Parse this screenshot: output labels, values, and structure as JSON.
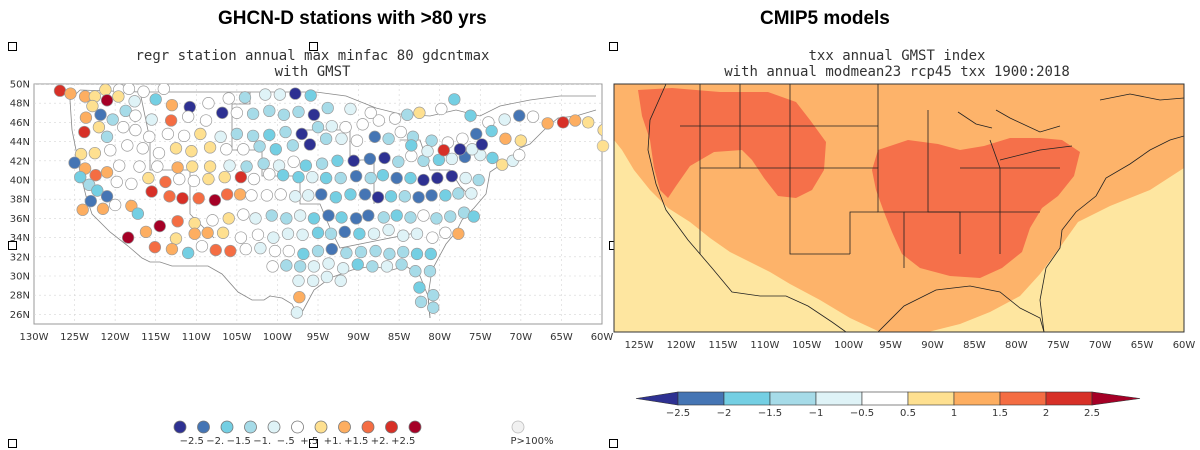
{
  "headings": {
    "left": "GHCN-D stations with >80 yrs",
    "right": "CMIP5 models"
  },
  "left_panel": {
    "subtitle_line1": "regr station annual max minfac 80 gdcntmax",
    "subtitle_line2": "with GMST",
    "lat_labels": [
      "50N",
      "48N",
      "46N",
      "44N",
      "42N",
      "40N",
      "38N",
      "36N",
      "34N",
      "32N",
      "30N",
      "28N",
      "26N"
    ],
    "lon_labels": [
      "130W",
      "125W",
      "120W",
      "115W",
      "110W",
      "105W",
      "100W",
      "95W",
      "90W",
      "85W",
      "80W",
      "75W",
      "70W",
      "65W",
      "60W"
    ],
    "legend_labels": [
      "−2.5",
      "−2.",
      "−1.5",
      "−1.",
      "−.5",
      "+.5",
      "+1.",
      "+1.5",
      "+2.",
      "+2.5"
    ],
    "legend_extra": "P>100%"
  },
  "right_panel": {
    "subtitle_line1": "txx annual GMST index",
    "subtitle_line2": "with annual modmean23 rcp45 txx 1900:2018",
    "lon_labels": [
      "125W",
      "120W",
      "115W",
      "110W",
      "105W",
      "100W",
      "95W",
      "90W",
      "85W",
      "80W",
      "75W",
      "70W",
      "65W",
      "60W"
    ],
    "colorbar_labels": [
      "−2.5",
      "−2",
      "−1.5",
      "−1",
      "−0.5",
      "0.5",
      "1",
      "1.5",
      "2",
      "2.5"
    ]
  },
  "colors": {
    "c-3": "#2e3192",
    "c-2": "#4575b4",
    "c-1": "#74cfe3",
    "c0": "#a6dbe8",
    "c1": "#dff3f7",
    "c2": "#ffffff",
    "c3": "#fee090",
    "c4": "#fdae61",
    "c5": "#f46d43",
    "c6": "#d73027",
    "c7": "#a50026",
    "ocean": "#fee6a0",
    "land_pos1": "#fdae61",
    "land_pos2": "#f46d43"
  },
  "chart_data": {
    "type": "scatter",
    "title": "regr station annual max minfac 80 gdcntmax with GMST",
    "xlim": [
      -130,
      -60
    ],
    "ylim": [
      25,
      50
    ],
    "classes": [
      -3,
      -2,
      -1,
      0,
      1,
      2,
      3,
      4,
      5,
      6,
      7
    ],
    "stations": [
      [
        -126.8,
        49.3,
        6
      ],
      [
        -125.5,
        49.0,
        4
      ],
      [
        -123.7,
        48.7,
        4
      ],
      [
        -122.5,
        48.7,
        3
      ],
      [
        -121.2,
        49.4,
        3
      ],
      [
        -119.5,
        49.4,
        2
      ],
      [
        -118.3,
        49.5,
        2
      ],
      [
        -116.5,
        49.2,
        2
      ],
      [
        -114.0,
        49.5,
        2
      ],
      [
        -121.0,
        48.3,
        7
      ],
      [
        -119.6,
        48.7,
        3
      ],
      [
        -117.6,
        48.2,
        1
      ],
      [
        -115.0,
        48.4,
        -1
      ],
      [
        -113.0,
        47.8,
        4
      ],
      [
        -110.8,
        47.6,
        -3
      ],
      [
        -108.5,
        48.0,
        2
      ],
      [
        -106.0,
        48.5,
        2
      ],
      [
        -104.0,
        48.6,
        0
      ],
      [
        -101.5,
        48.9,
        1
      ],
      [
        -99.7,
        48.9,
        1
      ],
      [
        -97.8,
        49.0,
        -3
      ],
      [
        -95.9,
        48.8,
        -1
      ],
      [
        -122.8,
        47.7,
        3
      ],
      [
        -121.8,
        46.8,
        -2
      ],
      [
        -120.3,
        46.3,
        0
      ],
      [
        -118.7,
        47.2,
        0
      ],
      [
        -117.5,
        46.7,
        2
      ],
      [
        -115.5,
        46.3,
        1
      ],
      [
        -113.1,
        46.2,
        5
      ],
      [
        -111.0,
        46.6,
        2
      ],
      [
        -108.8,
        46.2,
        2
      ],
      [
        -106.8,
        47.0,
        -3
      ],
      [
        -105.0,
        47.0,
        2
      ],
      [
        -103.0,
        46.9,
        0
      ],
      [
        -101.0,
        47.2,
        0
      ],
      [
        -99.2,
        46.8,
        0
      ],
      [
        -97.4,
        47.1,
        0
      ],
      [
        -95.5,
        46.8,
        -3
      ],
      [
        -123.6,
        46.5,
        4
      ],
      [
        -122.0,
        45.5,
        3
      ],
      [
        -123.8,
        45.0,
        6
      ],
      [
        -121.0,
        44.5,
        0
      ],
      [
        -119.0,
        45.5,
        2
      ],
      [
        -117.5,
        45.2,
        2
      ],
      [
        -115.8,
        44.5,
        2
      ],
      [
        -113.5,
        44.8,
        2
      ],
      [
        -111.5,
        44.6,
        2
      ],
      [
        -109.5,
        44.8,
        3
      ],
      [
        -107.0,
        44.5,
        1
      ],
      [
        -105.0,
        44.8,
        0
      ],
      [
        -103.0,
        44.6,
        0
      ],
      [
        -101.0,
        44.7,
        -1
      ],
      [
        -99.0,
        45.0,
        0
      ],
      [
        -97.0,
        44.8,
        -3
      ],
      [
        -95.0,
        45.5,
        0
      ],
      [
        -93.3,
        45.6,
        1
      ],
      [
        -91.6,
        45.5,
        2
      ],
      [
        -89.5,
        45.8,
        2
      ],
      [
        -87.5,
        46.2,
        2
      ],
      [
        -85.5,
        46.4,
        2
      ],
      [
        -84.0,
        46.8,
        0
      ],
      [
        -82.5,
        47.0,
        3
      ],
      [
        -93.8,
        47.5,
        0
      ],
      [
        -91.0,
        47.4,
        1
      ],
      [
        -88.5,
        47.0,
        2
      ],
      [
        -79.8,
        47.4,
        2
      ],
      [
        -78.2,
        48.4,
        -1
      ],
      [
        -76.2,
        46.7,
        -1
      ],
      [
        -74.0,
        46.0,
        2
      ],
      [
        -72.0,
        46.3,
        1
      ],
      [
        -70.2,
        46.7,
        -2
      ],
      [
        -68.5,
        46.6,
        2
      ],
      [
        -66.7,
        45.9,
        4
      ],
      [
        -64.8,
        46.0,
        6
      ],
      [
        -63.3,
        46.2,
        4
      ],
      [
        -61.7,
        46.0,
        3
      ],
      [
        -59.8,
        45.2,
        3
      ],
      [
        -70.0,
        44.1,
        3
      ],
      [
        -71.9,
        44.3,
        4
      ],
      [
        -73.6,
        45.1,
        -1
      ],
      [
        -75.5,
        44.8,
        -2
      ],
      [
        -77.2,
        44.3,
        2
      ],
      [
        -79.0,
        43.9,
        2
      ],
      [
        -81.0,
        44.1,
        0
      ],
      [
        -83.3,
        44.5,
        0
      ],
      [
        -84.8,
        45.0,
        2
      ],
      [
        -86.3,
        44.3,
        0
      ],
      [
        -88.0,
        44.5,
        -2
      ],
      [
        -90.2,
        44.1,
        2
      ],
      [
        -92.1,
        44.3,
        1
      ],
      [
        -94.0,
        44.3,
        0
      ],
      [
        -96.0,
        43.7,
        -3
      ],
      [
        -98.1,
        43.6,
        0
      ],
      [
        -100.2,
        43.2,
        -1
      ],
      [
        -102.2,
        43.5,
        0
      ],
      [
        -104.2,
        43.2,
        2
      ],
      [
        -106.3,
        43.2,
        2
      ],
      [
        -108.3,
        43.4,
        3
      ],
      [
        -110.6,
        43.0,
        3
      ],
      [
        -112.5,
        43.3,
        3
      ],
      [
        -114.6,
        42.8,
        2
      ],
      [
        -116.6,
        43.3,
        2
      ],
      [
        -118.5,
        43.6,
        2
      ],
      [
        -120.6,
        43.1,
        2
      ],
      [
        -122.5,
        42.8,
        3
      ],
      [
        -124.2,
        42.7,
        3
      ],
      [
        -125.0,
        41.8,
        -2
      ],
      [
        -123.7,
        41.2,
        4
      ],
      [
        -122.4,
        40.5,
        5
      ],
      [
        -121.0,
        40.8,
        4
      ],
      [
        -119.5,
        41.5,
        2
      ],
      [
        -117.0,
        41.4,
        2
      ],
      [
        -114.8,
        41.4,
        2
      ],
      [
        -112.3,
        41.3,
        4
      ],
      [
        -110.5,
        41.4,
        3
      ],
      [
        -108.3,
        41.4,
        3
      ],
      [
        -105.9,
        41.5,
        1
      ],
      [
        -103.8,
        41.4,
        0
      ],
      [
        -101.7,
        41.7,
        0
      ],
      [
        -99.8,
        41.5,
        1
      ],
      [
        -98.0,
        41.9,
        2
      ],
      [
        -96.5,
        41.5,
        -1
      ],
      [
        -94.5,
        41.7,
        0
      ],
      [
        -92.6,
        42.0,
        -1
      ],
      [
        -90.6,
        42.0,
        -3
      ],
      [
        -88.6,
        42.2,
        -2
      ],
      [
        -86.8,
        42.3,
        -3
      ],
      [
        -85.1,
        41.9,
        0
      ],
      [
        -83.5,
        42.5,
        2
      ],
      [
        -82.0,
        42.0,
        0
      ],
      [
        -80.1,
        42.1,
        -1
      ],
      [
        -78.5,
        42.2,
        1
      ],
      [
        -76.9,
        42.4,
        -2
      ],
      [
        -75.0,
        42.6,
        1
      ],
      [
        -73.5,
        42.3,
        -1
      ],
      [
        -72.3,
        41.6,
        3
      ],
      [
        -71.0,
        42.0,
        1
      ],
      [
        -70.2,
        42.6,
        2
      ],
      [
        -83.5,
        43.6,
        -1
      ],
      [
        -81.5,
        43.0,
        1
      ],
      [
        -79.5,
        43.1,
        6
      ],
      [
        -77.5,
        43.2,
        -3
      ],
      [
        -76.0,
        43.2,
        1
      ],
      [
        -74.8,
        43.7,
        -3
      ],
      [
        -124.3,
        40.3,
        -1
      ],
      [
        -123.2,
        39.5,
        0
      ],
      [
        -122.2,
        38.9,
        -1
      ],
      [
        -121.0,
        38.3,
        -2
      ],
      [
        -119.8,
        39.8,
        2
      ],
      [
        -118.0,
        39.6,
        2
      ],
      [
        -115.9,
        40.2,
        3
      ],
      [
        -113.8,
        39.8,
        5
      ],
      [
        -112.1,
        40.1,
        2
      ],
      [
        -110.3,
        39.9,
        2
      ],
      [
        -108.5,
        40.1,
        3
      ],
      [
        -106.5,
        40.3,
        3
      ],
      [
        -104.5,
        40.3,
        6
      ],
      [
        -102.9,
        40.1,
        2
      ],
      [
        -101.0,
        40.6,
        2
      ],
      [
        -99.3,
        40.5,
        -1
      ],
      [
        -97.4,
        40.3,
        -1
      ],
      [
        -95.7,
        40.3,
        1
      ],
      [
        -94.0,
        40.2,
        -1
      ],
      [
        -92.2,
        40.2,
        0
      ],
      [
        -90.3,
        40.4,
        -2
      ],
      [
        -88.5,
        40.2,
        0
      ],
      [
        -87.0,
        40.5,
        -1
      ],
      [
        -85.3,
        40.2,
        -2
      ],
      [
        -83.6,
        40.2,
        -1
      ],
      [
        -82.0,
        40.0,
        -3
      ],
      [
        -80.3,
        40.2,
        -3
      ],
      [
        -78.5,
        40.4,
        -3
      ],
      [
        -76.8,
        40.2,
        1
      ],
      [
        -75.2,
        40.0,
        0
      ],
      [
        -123.0,
        37.8,
        -2
      ],
      [
        -121.5,
        37.0,
        4
      ],
      [
        -120.0,
        37.4,
        2
      ],
      [
        -118.0,
        37.3,
        4
      ],
      [
        -115.5,
        38.8,
        6
      ],
      [
        -113.3,
        38.3,
        5
      ],
      [
        -111.7,
        38.1,
        6
      ],
      [
        -109.7,
        38.1,
        5
      ],
      [
        -107.7,
        37.9,
        7
      ],
      [
        -106.2,
        38.5,
        5
      ],
      [
        -104.6,
        38.5,
        4
      ],
      [
        -103.2,
        38.4,
        2
      ],
      [
        -101.3,
        38.4,
        2
      ],
      [
        -99.6,
        38.5,
        2
      ],
      [
        -97.8,
        38.3,
        1
      ],
      [
        -96.2,
        38.4,
        1
      ],
      [
        -94.6,
        38.5,
        -2
      ],
      [
        -92.8,
        38.2,
        -1
      ],
      [
        -91.0,
        38.5,
        -1
      ],
      [
        -89.2,
        38.5,
        -2
      ],
      [
        -87.6,
        38.2,
        -3
      ],
      [
        -86.0,
        38.3,
        -1
      ],
      [
        -84.3,
        38.3,
        0
      ],
      [
        -82.6,
        38.2,
        -2
      ],
      [
        -81.0,
        38.4,
        -2
      ],
      [
        -79.3,
        38.4,
        -1
      ],
      [
        -77.7,
        38.6,
        0
      ],
      [
        -76.1,
        38.6,
        1
      ],
      [
        -124.0,
        36.9,
        4
      ],
      [
        -117.2,
        36.5,
        -1
      ],
      [
        -114.5,
        35.2,
        7
      ],
      [
        -112.3,
        35.7,
        5
      ],
      [
        -110.2,
        35.5,
        3
      ],
      [
        -108.0,
        35.8,
        2
      ],
      [
        -106.0,
        36.0,
        3
      ],
      [
        -104.2,
        36.4,
        2
      ],
      [
        -102.7,
        36.0,
        1
      ],
      [
        -100.7,
        36.3,
        0
      ],
      [
        -98.9,
        36.0,
        0
      ],
      [
        -97.2,
        36.3,
        1
      ],
      [
        -95.5,
        36.0,
        -1
      ],
      [
        -93.7,
        36.3,
        -2
      ],
      [
        -92.1,
        36.1,
        -1
      ],
      [
        -90.3,
        36.0,
        -2
      ],
      [
        -88.8,
        36.3,
        -2
      ],
      [
        -86.9,
        36.1,
        0
      ],
      [
        -85.3,
        36.3,
        -1
      ],
      [
        -83.6,
        36.1,
        0
      ],
      [
        -82.0,
        36.3,
        2
      ],
      [
        -80.4,
        36.0,
        0
      ],
      [
        -78.7,
        36.2,
        0
      ],
      [
        -77.0,
        36.6,
        0
      ],
      [
        -75.8,
        36.2,
        -1
      ],
      [
        -118.4,
        34.0,
        7
      ],
      [
        -116.2,
        34.6,
        4
      ],
      [
        -112.5,
        33.9,
        3
      ],
      [
        -110.2,
        34.4,
        4
      ],
      [
        -108.6,
        34.5,
        4
      ],
      [
        -106.7,
        34.5,
        3
      ],
      [
        -104.5,
        34.0,
        2
      ],
      [
        -102.4,
        34.3,
        2
      ],
      [
        -100.5,
        34.0,
        1
      ],
      [
        -98.7,
        34.4,
        1
      ],
      [
        -96.9,
        34.3,
        1
      ],
      [
        -95.0,
        34.5,
        -1
      ],
      [
        -93.4,
        34.4,
        0
      ],
      [
        -91.7,
        34.6,
        -2
      ],
      [
        -89.9,
        34.4,
        -1
      ],
      [
        -88.1,
        34.4,
        1
      ],
      [
        -86.3,
        34.8,
        1
      ],
      [
        -84.5,
        34.2,
        1
      ],
      [
        -82.8,
        34.4,
        1
      ],
      [
        -80.9,
        34.0,
        2
      ],
      [
        -79.3,
        34.5,
        2
      ],
      [
        -77.7,
        34.4,
        4
      ],
      [
        -115.1,
        33.0,
        5
      ],
      [
        -113.0,
        32.8,
        4
      ],
      [
        -111.0,
        32.4,
        -1
      ],
      [
        -109.3,
        33.1,
        2
      ],
      [
        -107.6,
        32.7,
        5
      ],
      [
        -105.8,
        32.6,
        5
      ],
      [
        -103.9,
        32.8,
        2
      ],
      [
        -102.1,
        32.9,
        1
      ],
      [
        -100.3,
        32.6,
        2
      ],
      [
        -98.6,
        32.6,
        2
      ],
      [
        -96.8,
        32.3,
        -1
      ],
      [
        -95.0,
        32.6,
        0
      ],
      [
        -93.3,
        32.8,
        -2
      ],
      [
        -91.5,
        32.4,
        0
      ],
      [
        -89.7,
        32.5,
        0
      ],
      [
        -87.9,
        32.6,
        0
      ],
      [
        -86.2,
        32.3,
        0
      ],
      [
        -84.5,
        32.5,
        0
      ],
      [
        -82.8,
        32.3,
        -1
      ],
      [
        -81.1,
        32.3,
        -1
      ],
      [
        -100.6,
        31.0,
        2
      ],
      [
        -98.9,
        31.1,
        0
      ],
      [
        -97.2,
        31.0,
        0
      ],
      [
        -95.5,
        31.0,
        1
      ],
      [
        -93.7,
        31.3,
        1
      ],
      [
        -91.9,
        30.8,
        1
      ],
      [
        -90.1,
        31.2,
        -1
      ],
      [
        -88.3,
        31.0,
        0
      ],
      [
        -86.5,
        31.0,
        1
      ],
      [
        -84.7,
        31.2,
        0
      ],
      [
        -83.0,
        30.5,
        0
      ],
      [
        -81.2,
        30.5,
        0
      ],
      [
        -97.4,
        29.5,
        1
      ],
      [
        -95.6,
        29.5,
        1
      ],
      [
        -93.9,
        29.9,
        1
      ],
      [
        -92.2,
        29.5,
        1
      ],
      [
        -82.5,
        28.8,
        -1
      ],
      [
        -80.8,
        28.0,
        0
      ],
      [
        -97.3,
        27.8,
        4
      ],
      [
        -82.3,
        27.3,
        0
      ],
      [
        -80.8,
        26.7,
        0
      ],
      [
        -97.6,
        26.2,
        1
      ]
    ]
  }
}
